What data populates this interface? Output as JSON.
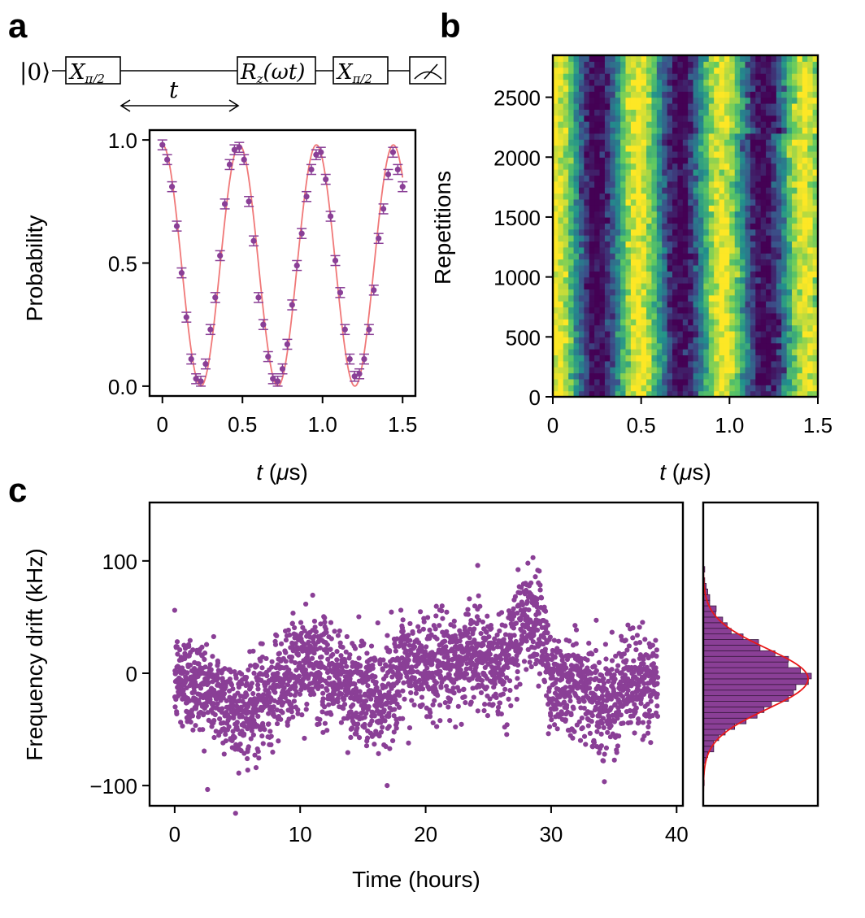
{
  "panel_labels": {
    "a": "a",
    "b": "b",
    "c": "c"
  },
  "circuit": {
    "ket": "|0⟩",
    "gate1": {
      "main": "X",
      "sub": "π/2"
    },
    "gate2": {
      "main": "R",
      "sub": "z",
      "arg": "(ωt)"
    },
    "gate3": {
      "main": "X",
      "sub": "π/2"
    },
    "delay_label": "t",
    "measure_label": "measurement"
  },
  "colors": {
    "purple": "#8a3f96",
    "fit_red": "#f07878",
    "hist_fit": "#e81818",
    "viridis": [
      "#440154",
      "#3b528b",
      "#21918c",
      "#5ec962",
      "#fde725"
    ]
  },
  "chart_data": [
    {
      "id": "a",
      "type": "scatter",
      "title": "",
      "xlabel": "t (μs)",
      "xlabel_parts": {
        "var": "t",
        "unit_open": " (",
        "mu": "μ",
        "unit_close": "s)"
      },
      "ylabel": "Probability",
      "xlim": [
        -0.08,
        1.58
      ],
      "ylim": [
        -0.04,
        1.04
      ],
      "xticks": [
        0,
        0.5,
        1.0,
        1.5
      ],
      "xtick_labels": [
        "0",
        "0.5",
        "1.0",
        "1.5"
      ],
      "yticks": [
        0.0,
        0.5,
        1.0
      ],
      "ytick_labels": [
        "0.0",
        "0.5",
        "1.0"
      ],
      "x": [
        0.0,
        0.03,
        0.06,
        0.09,
        0.12,
        0.15,
        0.18,
        0.21,
        0.24,
        0.27,
        0.3,
        0.33,
        0.36,
        0.39,
        0.42,
        0.45,
        0.48,
        0.51,
        0.54,
        0.57,
        0.6,
        0.63,
        0.66,
        0.69,
        0.72,
        0.75,
        0.78,
        0.81,
        0.84,
        0.87,
        0.9,
        0.93,
        0.96,
        0.99,
        1.02,
        1.05,
        1.08,
        1.11,
        1.14,
        1.17,
        1.2,
        1.23,
        1.26,
        1.29,
        1.32,
        1.35,
        1.38,
        1.41,
        1.44,
        1.47,
        1.5
      ],
      "y": [
        0.98,
        0.92,
        0.81,
        0.65,
        0.46,
        0.28,
        0.11,
        0.03,
        0.02,
        0.09,
        0.23,
        0.36,
        0.53,
        0.74,
        0.9,
        0.96,
        0.97,
        0.92,
        0.75,
        0.59,
        0.36,
        0.25,
        0.12,
        0.03,
        0.02,
        0.07,
        0.17,
        0.33,
        0.49,
        0.62,
        0.77,
        0.88,
        0.94,
        0.95,
        0.84,
        0.69,
        0.51,
        0.38,
        0.23,
        0.11,
        0.04,
        0.05,
        0.11,
        0.23,
        0.39,
        0.6,
        0.72,
        0.86,
        0.95,
        0.88,
        0.81
      ],
      "yerr": 0.02,
      "fit": {
        "model": "0.98*cos^2(pi*f*t)",
        "freq_MHz": 2.08,
        "amplitude": 0.98,
        "x_range": [
          0.0,
          1.5
        ]
      }
    },
    {
      "id": "b",
      "type": "heatmap",
      "title": "",
      "xlabel": "t (μs)",
      "xlabel_parts": {
        "var": "t",
        "unit_open": " (",
        "mu": "μ",
        "unit_close": "s)"
      },
      "ylabel": "Repetitions",
      "xlim": [
        0,
        1.5
      ],
      "ylim": [
        0,
        2850
      ],
      "xticks": [
        0,
        0.5,
        1.0,
        1.5
      ],
      "xtick_labels": [
        "0",
        "0.5",
        "1.0",
        "1.5"
      ],
      "yticks": [
        0,
        500,
        1000,
        1500,
        2000,
        2500
      ],
      "ytick_labels": [
        "0",
        "500",
        "1000",
        "1500",
        "2000",
        "2500"
      ],
      "colormap": "viridis",
      "columns": 51,
      "rows": 57,
      "base_freq_MHz": 2.08,
      "drift_per_repetition": "follows panel c frequency drift"
    },
    {
      "id": "c",
      "type": "scatter",
      "title": "",
      "xlabel": "Time (hours)",
      "ylabel": "Frequency drift (kHz)",
      "xlim": [
        -2,
        40.5
      ],
      "ylim": [
        -118,
        152
      ],
      "xticks": [
        0,
        10,
        20,
        30,
        40
      ],
      "xtick_labels": [
        "0",
        "10",
        "20",
        "30",
        "40"
      ],
      "yticks": [
        -100,
        0,
        100
      ],
      "ytick_labels": [
        "−100",
        "0",
        "100"
      ],
      "n_points": 2850,
      "x_range": [
        0,
        38.5
      ],
      "trend": [
        {
          "t": 0,
          "v": -5
        },
        {
          "t": 2,
          "v": -10
        },
        {
          "t": 4,
          "v": -25
        },
        {
          "t": 5.5,
          "v": -38
        },
        {
          "t": 7,
          "v": -25
        },
        {
          "t": 9,
          "v": 0
        },
        {
          "t": 11,
          "v": 8
        },
        {
          "t": 13,
          "v": -5
        },
        {
          "t": 15,
          "v": -18
        },
        {
          "t": 16.5,
          "v": -22
        },
        {
          "t": 18,
          "v": 2
        },
        {
          "t": 20,
          "v": 8
        },
        {
          "t": 22,
          "v": 5
        },
        {
          "t": 24,
          "v": 22
        },
        {
          "t": 26,
          "v": 2
        },
        {
          "t": 27.5,
          "v": 42
        },
        {
          "t": 29,
          "v": 52
        },
        {
          "t": 30,
          "v": -8
        },
        {
          "t": 32,
          "v": -5
        },
        {
          "t": 34,
          "v": -28
        },
        {
          "t": 36,
          "v": -10
        },
        {
          "t": 38.5,
          "v": -10
        }
      ],
      "noise_sd_kHz": 22
    },
    {
      "id": "c-hist",
      "type": "bar",
      "title": "",
      "orientation": "horizontal",
      "bins_range_kHz": [
        -105,
        95
      ],
      "bin_width_kHz": 5,
      "gaussian_fit": {
        "mean_kHz": -5,
        "sd_kHz": 27
      }
    }
  ]
}
